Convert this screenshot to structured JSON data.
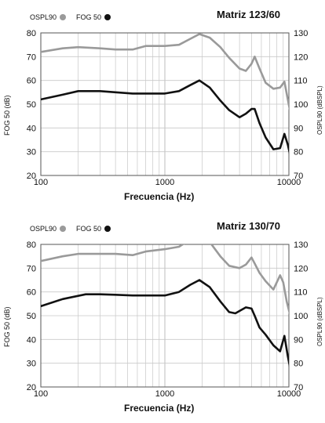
{
  "chart_data": [
    {
      "type": "line",
      "title": "Matriz 123/60",
      "xlabel": "Frecuencia (Hz)",
      "ylabel_left": "FOG 50 (dB)",
      "ylabel_right": "OSPL90 (dBSPL)",
      "xscale": "log",
      "xlim": [
        100,
        10000
      ],
      "xticks": [
        "100",
        "1000",
        "10000"
      ],
      "ylim_left": [
        20,
        80
      ],
      "yticks_left": [
        "80",
        "70",
        "60",
        "50",
        "40",
        "30",
        "20"
      ],
      "ylim_right": [
        70,
        130
      ],
      "yticks_right": [
        "130",
        "120",
        "110",
        "100",
        "90",
        "80",
        "70"
      ],
      "grid": true,
      "legend": [
        {
          "label": "OSPL90",
          "color": "#9a9a9a"
        },
        {
          "label": "FOG 50",
          "color": "#111111"
        }
      ],
      "series": [
        {
          "name": "OSPL90",
          "axis": "right",
          "color": "#9a9a9a",
          "x": [
            85,
            100,
            150,
            200,
            300,
            400,
            550,
            700,
            1000,
            1300,
            1600,
            1900,
            2300,
            2800,
            3300,
            4000,
            4500,
            5000,
            5300,
            5800,
            6500,
            7500,
            8500,
            9200,
            9800,
            10500,
            12000
          ],
          "y": [
            121,
            122,
            123.5,
            124,
            123.5,
            123,
            123,
            124.5,
            124.5,
            125,
            127.5,
            129.5,
            128,
            124,
            119.5,
            115,
            114,
            117,
            120,
            115,
            109,
            106.5,
            107,
            109.5,
            102,
            94,
            76
          ]
        },
        {
          "name": "FOG 50",
          "axis": "left",
          "color": "#111111",
          "x": [
            85,
            100,
            150,
            200,
            300,
            400,
            550,
            700,
            1000,
            1300,
            1600,
            1900,
            2300,
            2800,
            3300,
            4000,
            4500,
            5000,
            5300,
            5800,
            6500,
            7500,
            8500,
            9200,
            9800,
            10500,
            11300
          ],
          "y": [
            51,
            52,
            54,
            55.5,
            55.5,
            55,
            54.5,
            54.5,
            54.5,
            55.5,
            58,
            60,
            57,
            51.5,
            47.5,
            44.5,
            46,
            48,
            48,
            42,
            36,
            31,
            31.5,
            37.5,
            33,
            26,
            20
          ]
        }
      ]
    },
    {
      "type": "line",
      "title": "Matriz 130/70",
      "xlabel": "Frecuencia (Hz)",
      "ylabel_left": "FOG 50 (dB)",
      "ylabel_right": "OSPL90 (dBSPL)",
      "xscale": "log",
      "xlim": [
        100,
        10000
      ],
      "xticks": [
        "100",
        "1000",
        "10000"
      ],
      "ylim_left": [
        20,
        80
      ],
      "yticks_left": [
        "80",
        "70",
        "60",
        "50",
        "40",
        "30",
        "20"
      ],
      "ylim_right": [
        70,
        130
      ],
      "yticks_right": [
        "130",
        "120",
        "110",
        "100",
        "90",
        "80",
        "70"
      ],
      "grid": true,
      "legend": [
        {
          "label": "OSPL90",
          "color": "#9a9a9a"
        },
        {
          "label": "FOG 50",
          "color": "#111111"
        }
      ],
      "series": [
        {
          "name": "OSPL90",
          "axis": "right",
          "color": "#9a9a9a",
          "x": [
            85,
            100,
            150,
            200,
            300,
            400,
            550,
            700,
            1000,
            1300,
            1600,
            1900,
            2300,
            2800,
            3300,
            4000,
            4500,
            5000,
            5300,
            5800,
            6500,
            7500,
            8500,
            9000,
            9600,
            10500,
            12000
          ],
          "y": [
            122,
            123,
            125,
            126,
            126,
            126,
            125.5,
            127,
            128,
            129,
            132,
            133.5,
            131,
            125,
            121,
            120,
            121.5,
            124.5,
            122,
            118,
            114.5,
            111,
            117,
            114,
            106,
            98,
            78
          ]
        },
        {
          "name": "FOG 50",
          "axis": "left",
          "color": "#111111",
          "x": [
            85,
            100,
            150,
            230,
            300,
            400,
            550,
            700,
            1000,
            1300,
            1600,
            1900,
            2300,
            2800,
            3300,
            3700,
            4500,
            5000,
            5300,
            5800,
            6500,
            7500,
            8500,
            9200,
            9800,
            10500,
            11300
          ],
          "y": [
            53,
            54,
            57,
            59,
            59,
            58.8,
            58.5,
            58.5,
            58.5,
            60,
            63,
            65,
            62,
            56,
            51.5,
            51,
            53.5,
            53,
            50,
            45,
            42,
            37.5,
            35,
            41.5,
            33,
            25,
            20
          ]
        }
      ]
    }
  ]
}
